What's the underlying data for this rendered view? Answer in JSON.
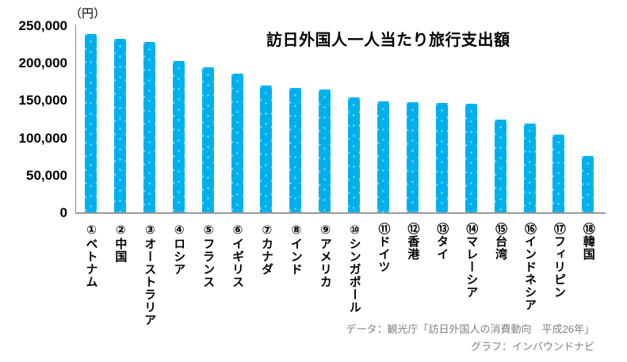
{
  "chart_data": {
    "type": "bar",
    "title": "訪日外国人一人当たり旅行支出額",
    "unit_label": "（円）",
    "categories": [
      "①ベトナム",
      "②中国",
      "③オーストラリア",
      "④ロシア",
      "⑤フランス",
      "⑥イギリス",
      "⑦カナダ",
      "⑧インド",
      "⑨アメリカ",
      "⑩シンガポール",
      "⑪ドイツ",
      "⑫香港",
      "⑬タイ",
      "⑭マレーシア",
      "⑮台湾",
      "⑯インドネシア",
      "⑰フィリピン",
      "⑱韓国"
    ],
    "values": [
      238000,
      232000,
      228000,
      202000,
      194000,
      185000,
      170000,
      166000,
      164000,
      154000,
      148000,
      147000,
      146000,
      145000,
      124000,
      119000,
      104000,
      75000
    ],
    "xlabel": "",
    "ylabel": "（円）",
    "ylim": [
      0,
      250000
    ],
    "y_ticks": [
      0,
      50000,
      100000,
      150000,
      200000,
      250000
    ],
    "y_tick_labels": [
      "0",
      "50,000",
      "100,000",
      "150,000",
      "200,000",
      "250,000"
    ],
    "grid": false,
    "legend": false,
    "bar_color": "#00b0ec",
    "bar_dot_color": "#7fdcf8",
    "axis_color": "#9a9a9a"
  },
  "footer": {
    "source": "データ：観光庁「訪日外国人の消費動向　平成26年」",
    "credit": "グラフ：インバウンドナビ"
  }
}
